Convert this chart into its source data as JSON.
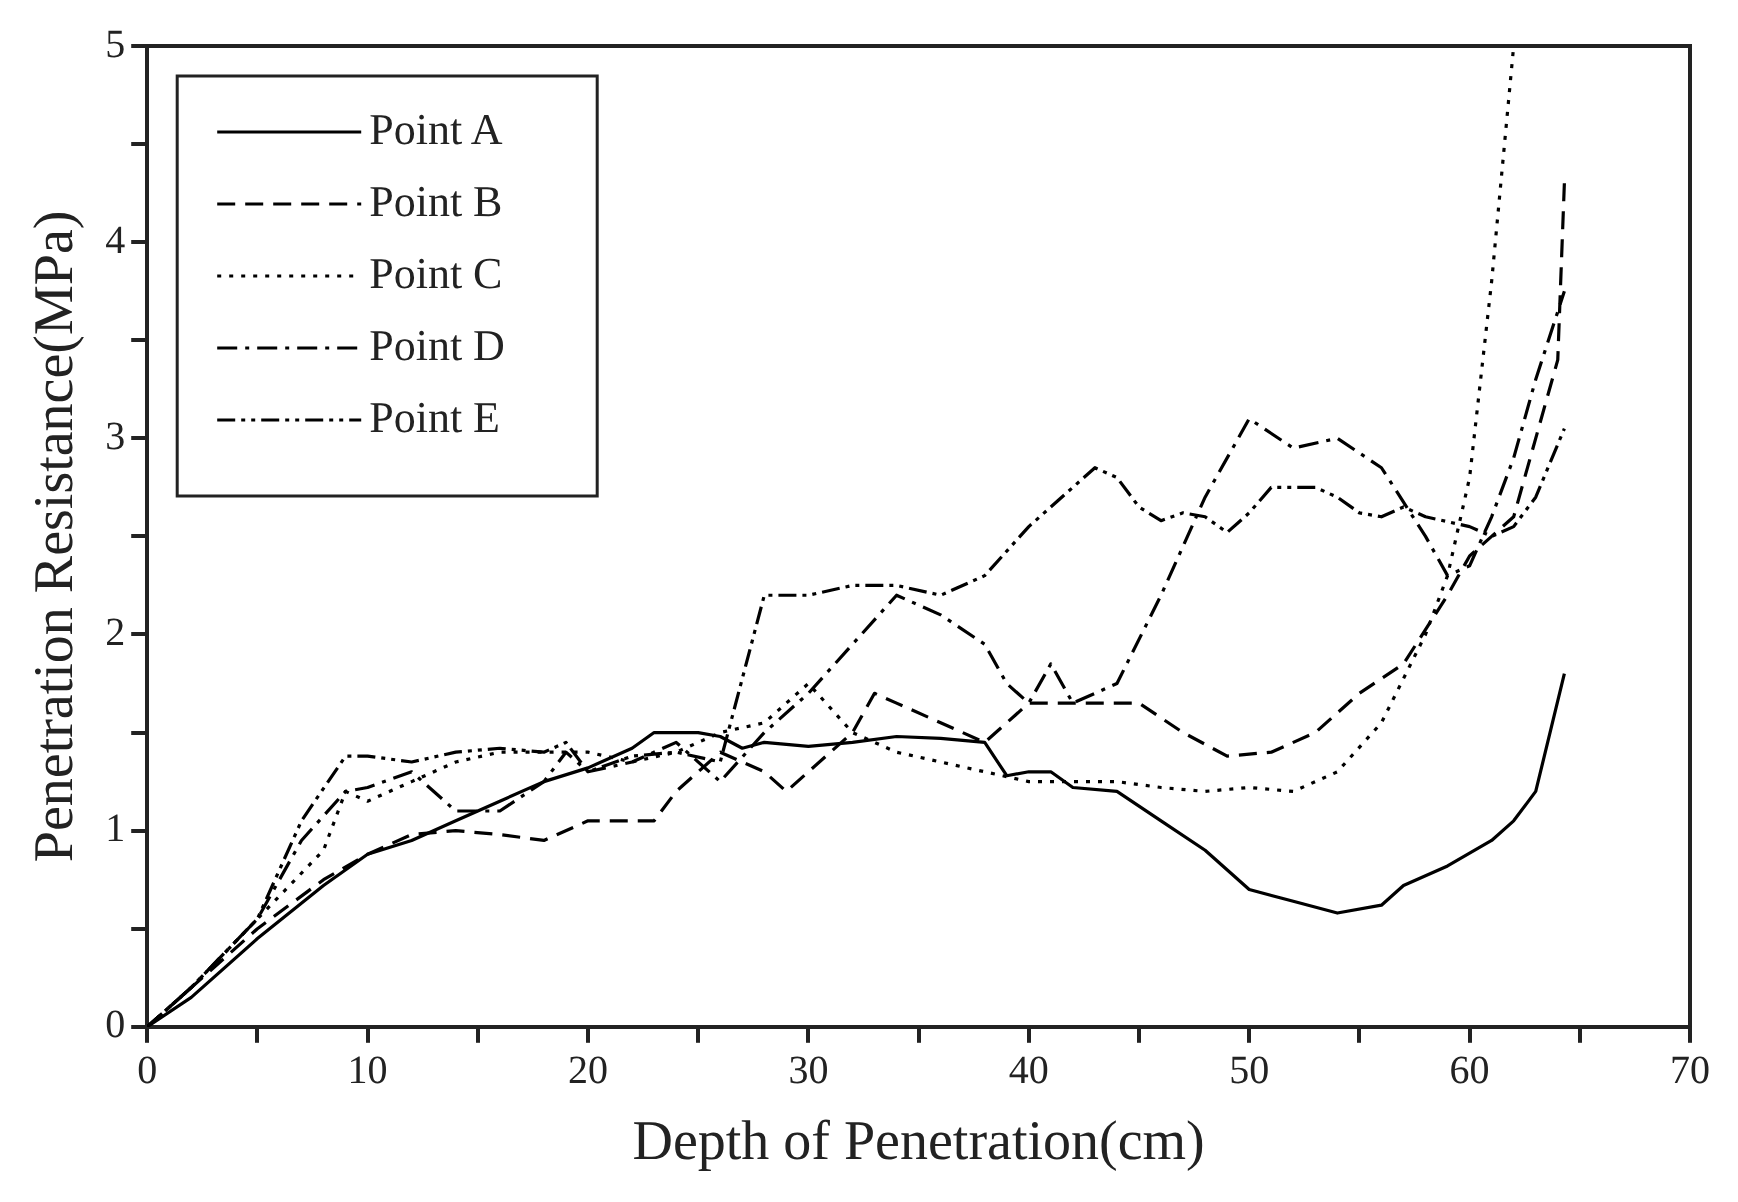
{
  "chart_data": {
    "type": "line",
    "xlabel": "Depth of Penetration(cm)",
    "ylabel": "Penetration Resistance(MPa)",
    "xlim": [
      0,
      70
    ],
    "xticks": [
      0,
      {
        "value": 5,
        "label": null
      },
      10,
      {
        "value": 15,
        "label": null
      },
      20,
      {
        "value": 25,
        "label": null
      },
      30,
      {
        "value": 35,
        "label": null
      },
      40,
      {
        "value": 45,
        "label": null
      },
      50,
      {
        "value": 55,
        "label": null
      },
      60,
      {
        "value": 65,
        "label": null
      },
      70
    ],
    "ylim": [
      0,
      5
    ],
    "yticks": [
      0,
      {
        "value": 0.5,
        "label": null
      },
      1,
      {
        "value": 1.5,
        "label": null
      },
      2,
      {
        "value": 2.5,
        "label": null
      },
      3,
      {
        "value": 3.5,
        "label": null
      },
      4,
      {
        "value": 4.5,
        "label": null
      },
      5
    ],
    "grid": false,
    "legend": "top left",
    "marker": "none",
    "series": [
      {
        "name": "Point A",
        "color": "#000000",
        "line_style": "solid",
        "x": [
          0,
          2,
          5,
          8,
          10,
          12,
          14,
          16,
          18,
          20,
          22,
          23,
          25,
          26,
          27,
          28,
          30,
          32,
          34,
          36,
          38,
          39,
          40,
          41,
          42,
          44,
          46,
          48,
          50,
          52,
          54,
          56,
          57,
          59,
          61,
          62,
          63,
          64.3
        ],
        "values": [
          0,
          0.15,
          0.45,
          0.72,
          0.88,
          0.95,
          1.05,
          1.15,
          1.25,
          1.32,
          1.42,
          1.5,
          1.5,
          1.48,
          1.42,
          1.45,
          1.43,
          1.45,
          1.48,
          1.47,
          1.45,
          1.28,
          1.3,
          1.3,
          1.22,
          1.2,
          1.05,
          0.9,
          0.7,
          0.64,
          0.58,
          0.62,
          0.72,
          0.82,
          0.95,
          1.05,
          1.2,
          1.8
        ]
      },
      {
        "name": "Point B",
        "color": "#000000",
        "line_style": "dashed",
        "x": [
          0,
          2,
          5,
          8,
          10,
          12,
          14,
          16,
          18,
          20,
          22,
          23,
          24,
          26,
          28,
          29,
          30,
          32,
          33,
          34,
          36,
          38,
          40,
          42,
          45,
          47,
          49,
          51,
          53,
          55,
          57,
          59,
          60,
          61,
          62,
          63,
          64,
          64.3
        ],
        "values": [
          0,
          0.2,
          0.5,
          0.75,
          0.88,
          0.98,
          1.0,
          0.98,
          0.95,
          1.05,
          1.05,
          1.05,
          1.2,
          1.4,
          1.3,
          1.2,
          1.3,
          1.5,
          1.7,
          1.65,
          1.55,
          1.45,
          1.65,
          1.65,
          1.65,
          1.5,
          1.38,
          1.4,
          1.5,
          1.7,
          1.85,
          2.2,
          2.4,
          2.5,
          2.6,
          3.0,
          3.4,
          4.3
        ]
      },
      {
        "name": "Point C",
        "color": "#000000",
        "line_style": "dotted",
        "x": [
          0,
          2,
          5,
          8,
          9,
          10,
          12,
          14,
          16,
          18,
          20,
          22,
          24,
          26,
          28,
          30,
          32,
          34,
          36,
          38,
          40,
          42,
          44,
          46,
          48,
          50,
          52,
          54,
          56,
          58,
          59,
          60,
          61,
          62
        ],
        "values": [
          0,
          0.2,
          0.55,
          0.9,
          1.2,
          1.15,
          1.25,
          1.35,
          1.4,
          1.4,
          1.4,
          1.35,
          1.4,
          1.5,
          1.55,
          1.75,
          1.5,
          1.4,
          1.35,
          1.3,
          1.25,
          1.25,
          1.25,
          1.22,
          1.2,
          1.22,
          1.2,
          1.3,
          1.55,
          2.0,
          2.3,
          2.8,
          3.8,
          5.0
        ]
      },
      {
        "name": "Point D",
        "color": "#000000",
        "line_style": "dashdot",
        "x": [
          0,
          2,
          5,
          7,
          9,
          10,
          12,
          14,
          16,
          18,
          19,
          20,
          22,
          24,
          26,
          28,
          30,
          32,
          34,
          36,
          38,
          39,
          40,
          41,
          42,
          44,
          46,
          48,
          50,
          52,
          54,
          56,
          58,
          59,
          60,
          61,
          62,
          63,
          64.3
        ],
        "values": [
          0,
          0.2,
          0.55,
          0.95,
          1.2,
          1.22,
          1.3,
          1.1,
          1.1,
          1.25,
          1.4,
          1.3,
          1.35,
          1.45,
          1.25,
          1.5,
          1.7,
          1.95,
          2.2,
          2.1,
          1.95,
          1.75,
          1.65,
          1.85,
          1.65,
          1.75,
          2.2,
          2.7,
          3.1,
          2.95,
          3.0,
          2.85,
          2.5,
          2.3,
          2.35,
          2.6,
          2.9,
          3.3,
          3.75
        ]
      },
      {
        "name": "Point E",
        "color": "#000000",
        "line_style": "dashdotdot",
        "x": [
          0,
          2,
          5,
          7,
          9,
          10,
          12,
          14,
          16,
          18,
          19,
          20,
          22,
          24,
          26,
          28,
          30,
          32,
          34,
          36,
          38,
          40,
          42,
          43,
          44,
          45,
          46,
          47,
          48,
          49,
          50,
          51,
          53,
          54,
          55,
          56,
          57,
          58,
          60,
          61,
          62,
          63,
          64.3
        ],
        "values": [
          0,
          0.2,
          0.55,
          1.05,
          1.38,
          1.38,
          1.35,
          1.4,
          1.42,
          1.4,
          1.45,
          1.3,
          1.38,
          1.4,
          1.35,
          2.2,
          2.2,
          2.25,
          2.25,
          2.2,
          2.3,
          2.55,
          2.75,
          2.85,
          2.8,
          2.65,
          2.58,
          2.62,
          2.6,
          2.52,
          2.62,
          2.75,
          2.75,
          2.7,
          2.62,
          2.6,
          2.65,
          2.6,
          2.55,
          2.5,
          2.55,
          2.7,
          3.05
        ]
      }
    ]
  }
}
